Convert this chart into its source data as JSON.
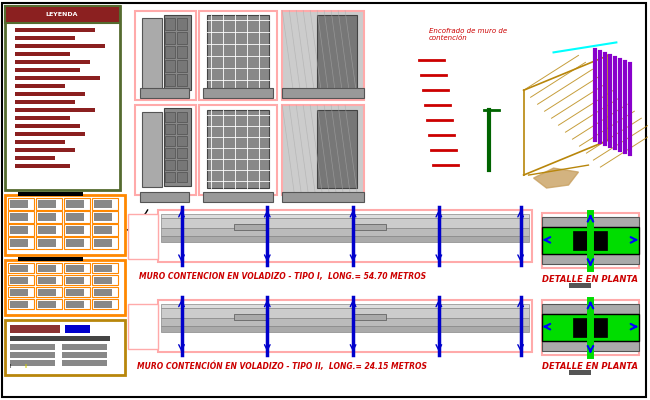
{
  "bg_color": "#ffffff",
  "label1": "MURO CONTENCION EN VOLADIZO - TIPO I,  LONG.= 54.70 METROS",
  "label2": "MURO CONTENCIÓN EN VOLADIZO - TIPO II,  LONG.= 24.15 METROS",
  "detalle": "DETALLE EN PLANTA",
  "encofrado": "Encofrado de muro de\ncontención",
  "green_color": "#00dd00",
  "blue_color": "#0000cc",
  "red_color": "#cc0000",
  "pink_border": "#ffaaaa",
  "orange_border": "#ff8800",
  "olive_border": "#556b2f",
  "maroon_color": "#8b2020",
  "gold_color": "#b8860b",
  "purple_color": "#8800cc",
  "gray1": "#cccccc",
  "gray2": "#bbbbbb",
  "gray3": "#aaaaaa",
  "gray4": "#888888",
  "gray5": "#777777",
  "gray6": "#555555",
  "gray7": "#444444",
  "gray8": "#999999"
}
